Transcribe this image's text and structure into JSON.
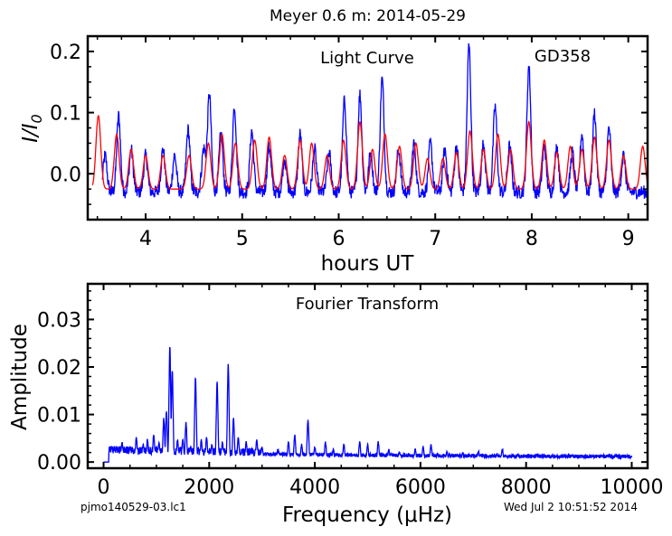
{
  "figure": {
    "title": "Meyer 0.6 m:  2014-05-29",
    "footer_left": "pjmo140529-03.lc1",
    "footer_right": "Wed Jul  2 10:51:52 2014"
  },
  "colors": {
    "observed": "#0000ff",
    "model": "#ff0000",
    "axes": "#000000"
  },
  "chart_data": [
    {
      "type": "line",
      "title": "Light Curve",
      "annotation": "GD358",
      "xlabel": "hours UT",
      "ylabel": "I/I0",
      "xlim": [
        3.4,
        9.2
      ],
      "ylim": [
        -0.075,
        0.225
      ],
      "xticks": [
        4,
        5,
        6,
        7,
        8,
        9
      ],
      "yticks": [
        0.0,
        0.1,
        0.2
      ],
      "ytick_labels": [
        "0.0",
        "0.1",
        "0.2"
      ],
      "observed_peaks": [
        {
          "x": 3.58,
          "y": 0.03
        },
        {
          "x": 3.72,
          "y": 0.095
        },
        {
          "x": 3.85,
          "y": 0.04
        },
        {
          "x": 4.0,
          "y": 0.03
        },
        {
          "x": 4.18,
          "y": 0.04
        },
        {
          "x": 4.3,
          "y": 0.03
        },
        {
          "x": 4.44,
          "y": 0.072
        },
        {
          "x": 4.6,
          "y": 0.04
        },
        {
          "x": 4.66,
          "y": 0.13
        },
        {
          "x": 4.78,
          "y": 0.065
        },
        {
          "x": 4.92,
          "y": 0.11
        },
        {
          "x": 5.1,
          "y": 0.07
        },
        {
          "x": 5.28,
          "y": 0.045
        },
        {
          "x": 5.44,
          "y": 0.025
        },
        {
          "x": 5.6,
          "y": 0.065
        },
        {
          "x": 5.75,
          "y": 0.04
        },
        {
          "x": 5.9,
          "y": 0.035
        },
        {
          "x": 6.06,
          "y": 0.12
        },
        {
          "x": 6.22,
          "y": 0.13
        },
        {
          "x": 6.33,
          "y": 0.035
        },
        {
          "x": 6.45,
          "y": 0.155
        },
        {
          "x": 6.62,
          "y": 0.04
        },
        {
          "x": 6.78,
          "y": 0.05
        },
        {
          "x": 6.95,
          "y": 0.05
        },
        {
          "x": 7.1,
          "y": 0.04
        },
        {
          "x": 7.22,
          "y": 0.045
        },
        {
          "x": 7.35,
          "y": 0.21
        },
        {
          "x": 7.5,
          "y": 0.05
        },
        {
          "x": 7.62,
          "y": 0.11
        },
        {
          "x": 7.77,
          "y": 0.045
        },
        {
          "x": 7.97,
          "y": 0.175
        },
        {
          "x": 8.13,
          "y": 0.045
        },
        {
          "x": 8.26,
          "y": 0.045
        },
        {
          "x": 8.42,
          "y": 0.035
        },
        {
          "x": 8.52,
          "y": 0.065
        },
        {
          "x": 8.65,
          "y": 0.1
        },
        {
          "x": 8.8,
          "y": 0.075
        },
        {
          "x": 8.95,
          "y": 0.03
        }
      ],
      "model_peaks": [
        {
          "x": 3.51,
          "y": 0.095
        },
        {
          "x": 3.7,
          "y": 0.065
        },
        {
          "x": 3.85,
          "y": 0.04
        },
        {
          "x": 4.0,
          "y": 0.03
        },
        {
          "x": 4.18,
          "y": 0.03
        },
        {
          "x": 4.45,
          "y": 0.03
        },
        {
          "x": 4.65,
          "y": 0.05
        },
        {
          "x": 4.79,
          "y": 0.065
        },
        {
          "x": 4.93,
          "y": 0.05
        },
        {
          "x": 5.13,
          "y": 0.055
        },
        {
          "x": 5.28,
          "y": 0.06
        },
        {
          "x": 5.44,
          "y": 0.03
        },
        {
          "x": 5.6,
          "y": 0.055
        },
        {
          "x": 5.72,
          "y": 0.05
        },
        {
          "x": 5.88,
          "y": 0.03
        },
        {
          "x": 6.05,
          "y": 0.055
        },
        {
          "x": 6.22,
          "y": 0.085
        },
        {
          "x": 6.35,
          "y": 0.04
        },
        {
          "x": 6.48,
          "y": 0.065
        },
        {
          "x": 6.63,
          "y": 0.045
        },
        {
          "x": 6.8,
          "y": 0.05
        },
        {
          "x": 6.92,
          "y": 0.025
        },
        {
          "x": 7.08,
          "y": 0.025
        },
        {
          "x": 7.22,
          "y": 0.035
        },
        {
          "x": 7.36,
          "y": 0.07
        },
        {
          "x": 7.5,
          "y": 0.04
        },
        {
          "x": 7.65,
          "y": 0.065
        },
        {
          "x": 7.78,
          "y": 0.04
        },
        {
          "x": 7.97,
          "y": 0.085
        },
        {
          "x": 8.13,
          "y": 0.055
        },
        {
          "x": 8.26,
          "y": 0.035
        },
        {
          "x": 8.4,
          "y": 0.045
        },
        {
          "x": 8.52,
          "y": 0.04
        },
        {
          "x": 8.65,
          "y": 0.06
        },
        {
          "x": 8.8,
          "y": 0.055
        },
        {
          "x": 8.95,
          "y": 0.03
        },
        {
          "x": 9.15,
          "y": 0.045
        }
      ]
    },
    {
      "type": "line",
      "title": "Fourier Transform",
      "xlabel": "Frequency (μHz)",
      "ylabel": "Amplitude",
      "xlim": [
        -300,
        10300
      ],
      "ylim": [
        -0.0013,
        0.0375
      ],
      "xticks": [
        0,
        2000,
        4000,
        6000,
        8000,
        10000
      ],
      "yticks": [
        0.0,
        0.01,
        0.02,
        0.03
      ],
      "ytick_labels": [
        "0.00",
        "0.01",
        "0.02",
        "0.03"
      ],
      "peaks": [
        {
          "x": 200,
          "y": 0.003
        },
        {
          "x": 350,
          "y": 0.004
        },
        {
          "x": 500,
          "y": 0.003
        },
        {
          "x": 620,
          "y": 0.005
        },
        {
          "x": 750,
          "y": 0.0035
        },
        {
          "x": 830,
          "y": 0.0045
        },
        {
          "x": 950,
          "y": 0.0055
        },
        {
          "x": 1050,
          "y": 0.004
        },
        {
          "x": 1140,
          "y": 0.009
        },
        {
          "x": 1190,
          "y": 0.0105
        },
        {
          "x": 1255,
          "y": 0.024
        },
        {
          "x": 1300,
          "y": 0.019
        },
        {
          "x": 1400,
          "y": 0.0045
        },
        {
          "x": 1500,
          "y": 0.0045
        },
        {
          "x": 1560,
          "y": 0.008
        },
        {
          "x": 1650,
          "y": 0.003
        },
        {
          "x": 1740,
          "y": 0.0175
        },
        {
          "x": 1850,
          "y": 0.0045
        },
        {
          "x": 1950,
          "y": 0.005
        },
        {
          "x": 2050,
          "y": 0.0035
        },
        {
          "x": 2150,
          "y": 0.0165
        },
        {
          "x": 2250,
          "y": 0.004
        },
        {
          "x": 2360,
          "y": 0.0205
        },
        {
          "x": 2460,
          "y": 0.009
        },
        {
          "x": 2550,
          "y": 0.005
        },
        {
          "x": 2700,
          "y": 0.004
        },
        {
          "x": 2900,
          "y": 0.0045
        },
        {
          "x": 3000,
          "y": 0.003
        },
        {
          "x": 3300,
          "y": 0.0025
        },
        {
          "x": 3500,
          "y": 0.004
        },
        {
          "x": 3620,
          "y": 0.0055
        },
        {
          "x": 3750,
          "y": 0.0035
        },
        {
          "x": 3870,
          "y": 0.0085
        },
        {
          "x": 4000,
          "y": 0.003
        },
        {
          "x": 4200,
          "y": 0.004
        },
        {
          "x": 4350,
          "y": 0.0025
        },
        {
          "x": 4550,
          "y": 0.0035
        },
        {
          "x": 4850,
          "y": 0.004
        },
        {
          "x": 5000,
          "y": 0.0035
        },
        {
          "x": 5200,
          "y": 0.004
        },
        {
          "x": 5400,
          "y": 0.0025
        },
        {
          "x": 5600,
          "y": 0.002
        },
        {
          "x": 5900,
          "y": 0.0025
        },
        {
          "x": 6050,
          "y": 0.003
        },
        {
          "x": 6200,
          "y": 0.0035
        },
        {
          "x": 6500,
          "y": 0.002
        },
        {
          "x": 6800,
          "y": 0.0018
        },
        {
          "x": 7100,
          "y": 0.002
        },
        {
          "x": 7450,
          "y": 0.0015
        },
        {
          "x": 7550,
          "y": 0.0025
        },
        {
          "x": 7850,
          "y": 0.0015
        },
        {
          "x": 8200,
          "y": 0.0015
        },
        {
          "x": 8500,
          "y": 0.0012
        },
        {
          "x": 8850,
          "y": 0.001
        },
        {
          "x": 9200,
          "y": 0.001
        },
        {
          "x": 9600,
          "y": 0.0008
        },
        {
          "x": 9900,
          "y": 0.0008
        }
      ]
    }
  ]
}
